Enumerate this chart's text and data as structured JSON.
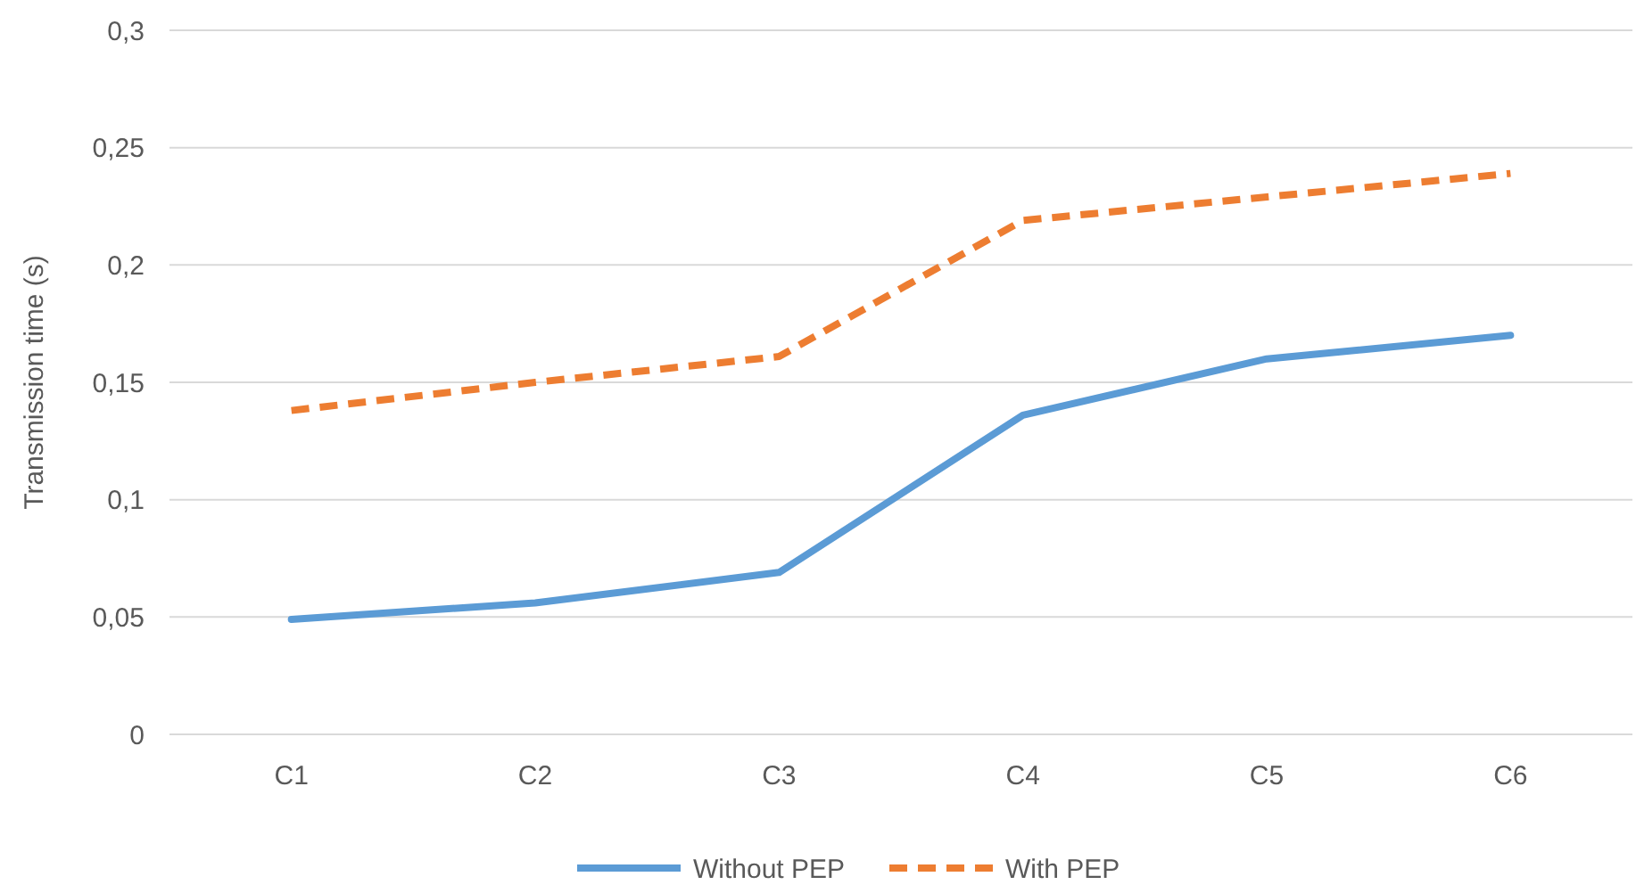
{
  "chart_data": {
    "type": "line",
    "ylabel": "Transmission time (s)",
    "categories": [
      "C1",
      "C2",
      "C3",
      "C4",
      "C5",
      "C6"
    ],
    "series": [
      {
        "name": "Without PEP",
        "color": "#5b9bd5",
        "line_style": "solid",
        "values": [
          0.049,
          0.056,
          0.069,
          0.136,
          0.16,
          0.17
        ]
      },
      {
        "name": "With PEP",
        "color": "#ed7d31",
        "line_style": "dashed",
        "values": [
          0.138,
          0.15,
          0.161,
          0.219,
          0.229,
          0.239
        ]
      }
    ],
    "ylim": [
      0,
      0.3
    ],
    "yticks": [
      0,
      {
        "value": 0.05,
        "label": "0,05"
      },
      {
        "value": 0.1,
        "label": "0,1"
      },
      {
        "value": 0.15,
        "label": "0,15"
      },
      {
        "value": 0.2,
        "label": "0,2"
      },
      {
        "value": 0.25,
        "label": "0,25"
      },
      {
        "value": 0.3,
        "label": "0,3"
      }
    ],
    "grid": "y",
    "legend": "bottom",
    "marker": "none"
  }
}
